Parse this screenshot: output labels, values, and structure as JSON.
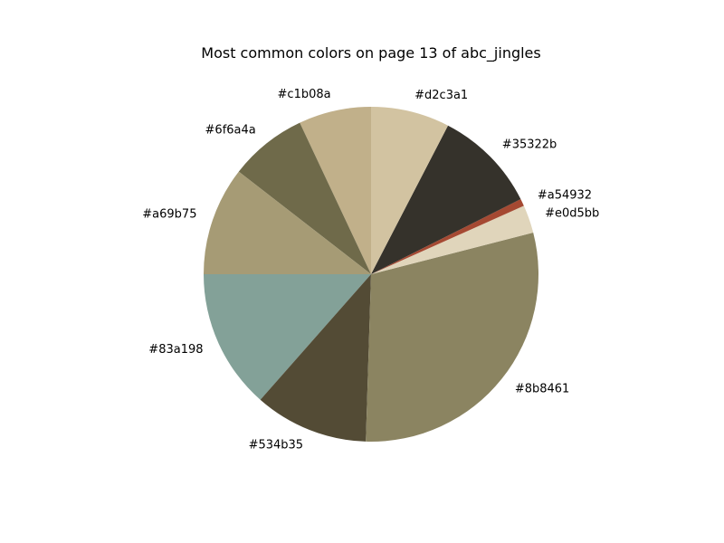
{
  "chart_data": {
    "type": "pie",
    "title": "Most common colors on page 13 of abc_jingles",
    "start_angle_deg": 90,
    "direction": "counterclockwise",
    "slices": [
      {
        "label": "#c1b08a",
        "value": 7.0,
        "color": "#c1b08a"
      },
      {
        "label": "#6f6a4a",
        "value": 7.5,
        "color": "#6f6a4a"
      },
      {
        "label": "#a69b75",
        "value": 10.5,
        "color": "#a69b75"
      },
      {
        "label": "#83a198",
        "value": 13.5,
        "color": "#83a198"
      },
      {
        "label": "#534b35",
        "value": 11.0,
        "color": "#534b35"
      },
      {
        "label": "#8b8461",
        "value": 29.5,
        "color": "#8b8461"
      },
      {
        "label": "#e0d5bb",
        "value": 2.7,
        "color": "#e0d5bb"
      },
      {
        "label": "#a54932",
        "value": 0.7,
        "color": "#a54932"
      },
      {
        "label": "#35322b",
        "value": 10.0,
        "color": "#35322b"
      },
      {
        "label": "#d2c3a1",
        "value": 7.6,
        "color": "#d2c3a1"
      }
    ]
  }
}
